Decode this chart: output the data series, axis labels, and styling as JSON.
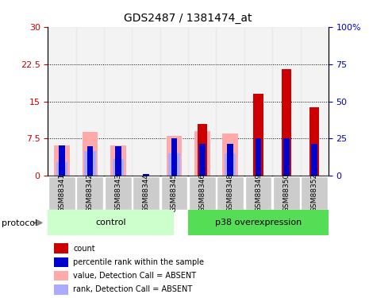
{
  "title": "GDS2487 / 1381474_at",
  "samples": [
    "GSM88341",
    "GSM88342",
    "GSM88343",
    "GSM88344",
    "GSM88345",
    "GSM88346",
    "GSM88348",
    "GSM88349",
    "GSM88350",
    "GSM88352"
  ],
  "count_values": [
    0,
    0,
    0,
    0,
    0,
    10.5,
    0,
    16.5,
    21.5,
    13.8
  ],
  "rank_values_pct": [
    20.5,
    20.0,
    20.0,
    1.0,
    25.0,
    21.5,
    21.5,
    25.0,
    25.0,
    21.5
  ],
  "absent_value_values": [
    6.2,
    8.8,
    6.2,
    0.0,
    8.0,
    9.0,
    8.5,
    0.0,
    0.0,
    0.0
  ],
  "absent_rank_pct": [
    9.3,
    16.5,
    11.5,
    0.0,
    15.0,
    0.0,
    15.0,
    0.0,
    0.0,
    0.0
  ],
  "ylim_left": [
    0,
    30
  ],
  "ylim_right": [
    0,
    100
  ],
  "yticks_left": [
    0,
    7.5,
    15,
    22.5,
    30
  ],
  "ytick_labels_left": [
    "0",
    "7.5",
    "15",
    "22.5",
    "30"
  ],
  "yticks_right": [
    0,
    25,
    50,
    75,
    100
  ],
  "ytick_labels_right": [
    "0",
    "25",
    "50",
    "75",
    "100%"
  ],
  "color_count": "#cc0000",
  "color_rank": "#0000cc",
  "color_absent_value": "#ffaaaa",
  "color_absent_rank": "#aaaaff",
  "color_control_bg": "#ccffcc",
  "color_p38_bg": "#55dd55",
  "legend_items": [
    {
      "label": "count",
      "color": "#cc0000"
    },
    {
      "label": "percentile rank within the sample",
      "color": "#0000cc"
    },
    {
      "label": "value, Detection Call = ABSENT",
      "color": "#ffaaaa"
    },
    {
      "label": "rank, Detection Call = ABSENT",
      "color": "#aaaaff"
    }
  ]
}
